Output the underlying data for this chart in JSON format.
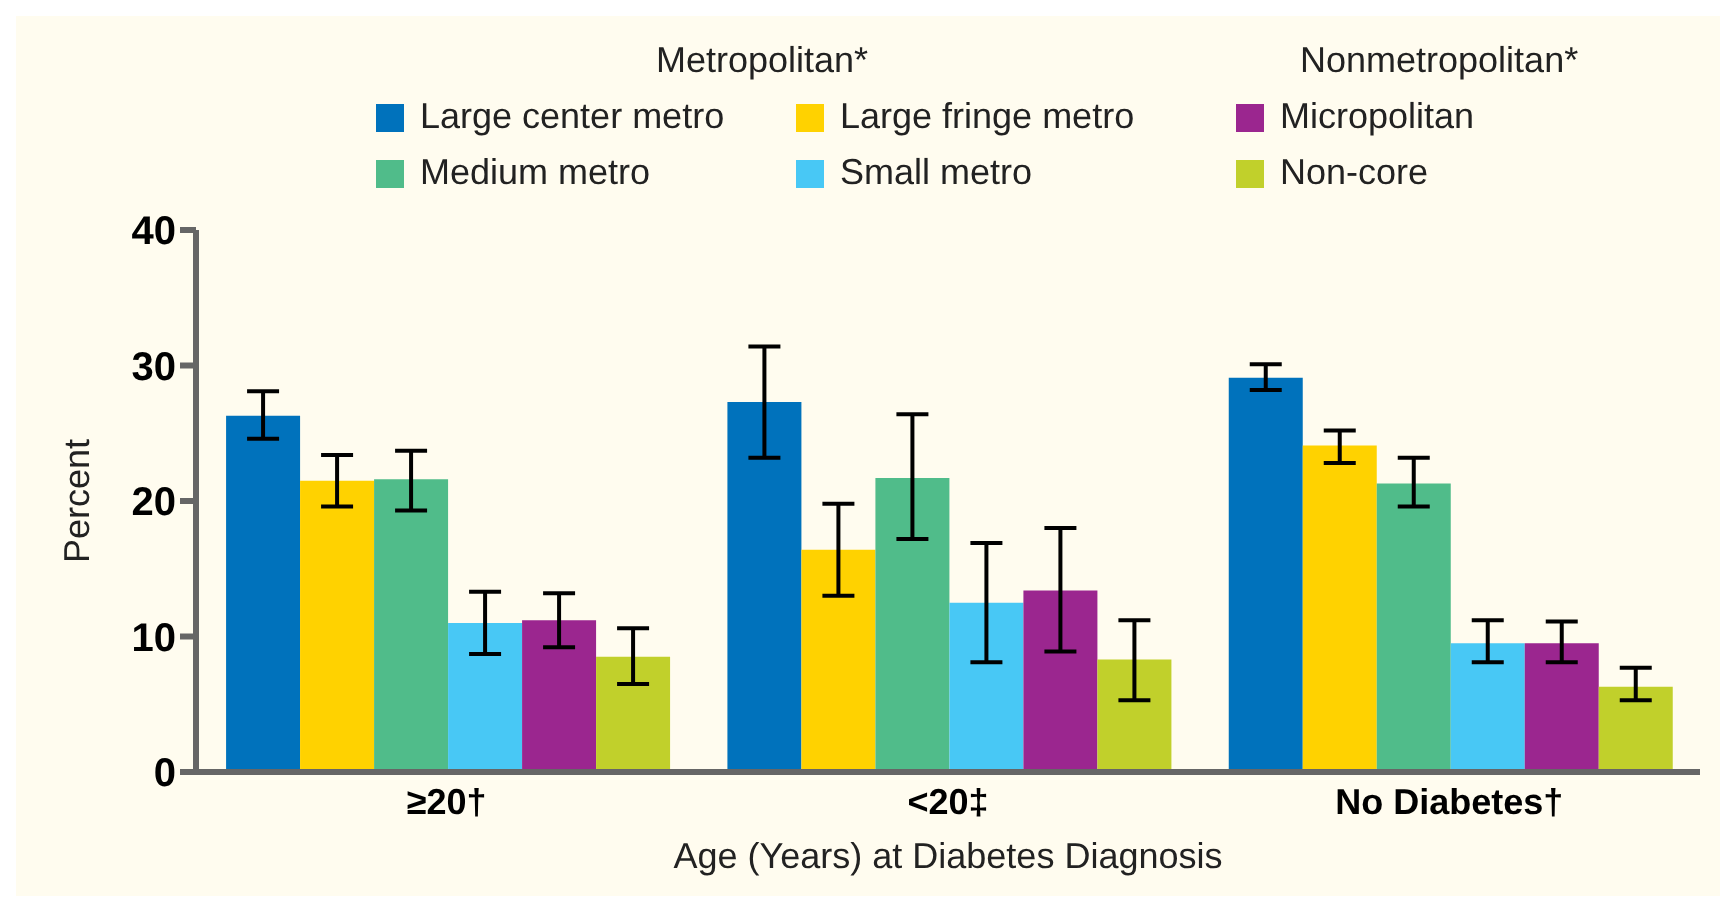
{
  "chart_data": {
    "type": "bar",
    "categories": [
      "≥20†",
      "<20‡",
      "No Diabetes†"
    ],
    "xlabel": "Age (Years) at Diabetes Diagnosis",
    "ylabel": "Percent",
    "annotations": [
      "Metropolitan*",
      "Nonmetropolitan*"
    ],
    "series": [
      {
        "name": "Large center metro",
        "color": "#0072bc",
        "values": [
          26.3,
          27.3,
          29.1
        ],
        "errors": [
          [
            24.6,
            28.1
          ],
          [
            23.2,
            31.4
          ],
          [
            28.2,
            30.1
          ]
        ]
      },
      {
        "name": "Large fringe metro",
        "color": "#ffd200",
        "values": [
          21.5,
          16.4,
          24.1
        ],
        "errors": [
          [
            19.6,
            23.4
          ],
          [
            13.0,
            19.8
          ],
          [
            22.8,
            25.2
          ]
        ]
      },
      {
        "name": "Medium metro",
        "color": "#50bc8a",
        "values": [
          21.6,
          21.7,
          21.3
        ],
        "errors": [
          [
            19.3,
            23.7
          ],
          [
            17.2,
            26.4
          ],
          [
            19.6,
            23.2
          ]
        ]
      },
      {
        "name": "Small metro",
        "color": "#48c8f5",
        "values": [
          11.0,
          12.5,
          9.5
        ],
        "errors": [
          [
            8.7,
            13.3
          ],
          [
            8.1,
            16.9
          ],
          [
            8.1,
            11.2
          ]
        ]
      },
      {
        "name": "Micropolitan",
        "color": "#9b268f",
        "values": [
          11.2,
          13.4,
          9.5
        ],
        "errors": [
          [
            9.2,
            13.2
          ],
          [
            8.9,
            18.0
          ],
          [
            8.1,
            11.1
          ]
        ]
      },
      {
        "name": "Non-core",
        "color": "#c1d02b",
        "values": [
          8.5,
          8.3,
          6.3
        ],
        "errors": [
          [
            6.5,
            10.6
          ],
          [
            5.3,
            11.2
          ],
          [
            5.3,
            7.7
          ]
        ]
      }
    ],
    "ylim": [
      0,
      40
    ],
    "yticks": [
      0,
      10,
      20,
      30,
      40
    ],
    "grid": false,
    "legend": "top"
  }
}
